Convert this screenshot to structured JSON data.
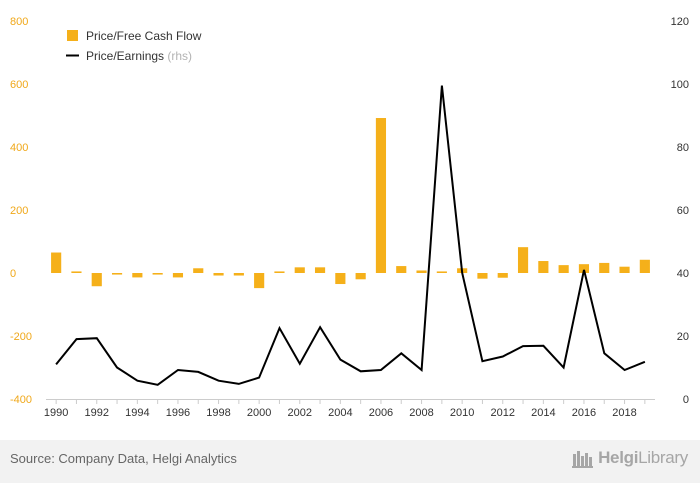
{
  "chart_data": {
    "type": "bar+line",
    "x": [
      "1990",
      "1991",
      "1992",
      "1993",
      "1994",
      "1995",
      "1996",
      "1997",
      "1998",
      "1999",
      "2000",
      "2001",
      "2002",
      "2003",
      "2004",
      "2005",
      "2006",
      "2007",
      "2008",
      "2009",
      "2010",
      "2011",
      "2012",
      "2013",
      "2014",
      "2015",
      "2016",
      "2017",
      "2018",
      "2019"
    ],
    "x_tick_labels": [
      "1990",
      "1992",
      "1994",
      "1996",
      "1998",
      "2000",
      "2002",
      "2004",
      "2006",
      "2008",
      "2010",
      "2012",
      "2014",
      "2016",
      "2018"
    ],
    "series": [
      {
        "name": "Price/Free Cash Flow",
        "type": "bar",
        "axis": "left",
        "color": "#f5b01a",
        "values": [
          65,
          5,
          -42,
          -5,
          -14,
          -5,
          -14,
          15,
          -8,
          -8,
          -48,
          5,
          18,
          18,
          -35,
          -20,
          492,
          22,
          8,
          5,
          15,
          -18,
          -15,
          82,
          38,
          25,
          28,
          32,
          20,
          42
        ]
      },
      {
        "name": "Price/Earnings",
        "name_suffix": "(rhs)",
        "type": "line",
        "axis": "right",
        "color": "#000000",
        "values": [
          11,
          19,
          19.3,
          10,
          5.8,
          4.5,
          9.2,
          8.6,
          5.8,
          4.8,
          6.8,
          22.5,
          11.2,
          22.8,
          12.5,
          8.8,
          9.2,
          14.5,
          9.2,
          99.5,
          40,
          12,
          13.5,
          16.8,
          16.9,
          10,
          41,
          14.5,
          9.2,
          11.8
        ]
      }
    ],
    "y_left": {
      "ticks": [
        -400,
        -200,
        0,
        200,
        400,
        600,
        800
      ],
      "labels": [
        "-400",
        "-200",
        "0",
        "200",
        "400",
        "600",
        "800"
      ],
      "range": [
        -400,
        800
      ],
      "label_color": "#f0a81a"
    },
    "y_right": {
      "ticks": [
        0,
        20,
        40,
        60,
        80,
        100,
        120
      ],
      "labels": [
        "0",
        "20",
        "40",
        "60",
        "80",
        "100",
        "120"
      ],
      "range": [
        0,
        120
      ]
    },
    "legend": {
      "placement": "top-left"
    },
    "grid": false
  },
  "footer": {
    "source": "Source: Company Data, Helgi Analytics",
    "logo_bold": "Helgi",
    "logo_light": "Library"
  }
}
